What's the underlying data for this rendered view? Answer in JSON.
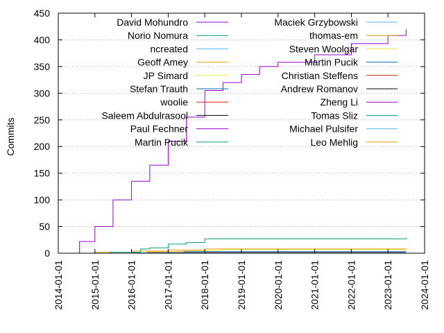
{
  "chart_data": {
    "type": "line",
    "ylabel": "Commits",
    "xlabel": "",
    "ylim": [
      0,
      450
    ],
    "xlim": [
      "2014-01-01",
      "2024-01-01"
    ],
    "y_ticks": [
      0,
      50,
      100,
      150,
      200,
      250,
      300,
      350,
      400,
      450
    ],
    "x_ticks": [
      "2014-01-01",
      "2015-01-01",
      "2016-01-01",
      "2017-01-01",
      "2018-01-01",
      "2019-01-01",
      "2020-01-01",
      "2021-01-01",
      "2022-01-01",
      "2023-01-01",
      "2024-01-01"
    ],
    "grid": "y-dotted",
    "legend": "inside-top, two columns",
    "series": [
      {
        "name": "David Mohundro",
        "color": "#9400d3",
        "x": [
          "2014-05-15",
          "2014-08-01",
          "2015-01-01",
          "2015-07-01",
          "2016-01-01",
          "2016-07-01",
          "2017-01-01",
          "2017-07-01",
          "2018-01-01",
          "2018-07-01",
          "2019-01-01",
          "2019-07-01",
          "2020-01-01",
          "2021-01-01",
          "2022-01-01",
          "2023-01-01",
          "2023-07-01"
        ],
        "values": [
          0,
          22,
          50,
          100,
          135,
          165,
          210,
          255,
          305,
          320,
          335,
          350,
          358,
          372,
          393,
          408,
          420
        ]
      },
      {
        "name": "Norio Nomura",
        "color": "#009e73",
        "x": [
          "2014-05-15",
          "2015-06-01",
          "2016-04-01",
          "2016-07-01",
          "2017-01-01",
          "2017-07-01",
          "2018-01-01",
          "2023-07-01"
        ],
        "values": [
          0,
          2,
          8,
          10,
          17,
          20,
          27,
          29
        ]
      },
      {
        "name": "ncreated",
        "color": "#56b4e9",
        "x": [
          "2014-05-15",
          "2016-01-01",
          "2023-07-01"
        ],
        "values": [
          0,
          1,
          1
        ]
      },
      {
        "name": "Geoff Amey",
        "color": "#e69f00",
        "x": [
          "2014-05-15",
          "2015-01-01",
          "2016-01-01",
          "2017-01-01",
          "2018-01-01",
          "2023-07-01"
        ],
        "values": [
          0,
          2,
          4,
          6,
          8,
          9
        ]
      },
      {
        "name": "JP Simard",
        "color": "#f0e442",
        "x": [
          "2014-05-15",
          "2016-06-01",
          "2017-06-01",
          "2018-06-01",
          "2023-07-01"
        ],
        "values": [
          0,
          3,
          5,
          7,
          7
        ]
      },
      {
        "name": "Stefan Trauth",
        "color": "#0072b2",
        "x": [
          "2014-05-15",
          "2017-01-01",
          "2023-07-01"
        ],
        "values": [
          0,
          3,
          3
        ]
      },
      {
        "name": "woolie",
        "color": "#e51e10",
        "x": [
          "2014-05-15",
          "2016-06-01",
          "2023-07-01"
        ],
        "values": [
          0,
          2,
          2
        ]
      },
      {
        "name": "Saleem Abdulrasool",
        "color": "#000000",
        "x": [
          "2014-05-15",
          "2019-01-01",
          "2023-07-01"
        ],
        "values": [
          0,
          2,
          2
        ]
      },
      {
        "name": "Paul Fechner",
        "color": "#9400d3",
        "x": [
          "2014-05-15",
          "2017-03-01",
          "2023-07-01"
        ],
        "values": [
          0,
          1,
          1
        ]
      },
      {
        "name": "Martin Pucik",
        "color": "#009e73",
        "x": [
          "2014-05-15",
          "2018-01-01",
          "2023-07-01"
        ],
        "values": [
          0,
          1,
          1
        ]
      },
      {
        "name": "Maciek Grzybowski",
        "color": "#56b4e9",
        "x": [
          "2014-05-15",
          "2017-06-01",
          "2023-07-01"
        ],
        "values": [
          0,
          1,
          1
        ]
      },
      {
        "name": "thomas-em",
        "color": "#e69f00",
        "x": [
          "2014-05-15",
          "2019-06-01",
          "2023-07-01"
        ],
        "values": [
          0,
          1,
          1
        ]
      },
      {
        "name": "Steven Woolgar",
        "color": "#f0e442",
        "x": [
          "2014-05-15",
          "2018-06-01",
          "2023-07-01"
        ],
        "values": [
          0,
          1,
          1
        ]
      },
      {
        "name": "Martin Pucik",
        "color": "#0072b2",
        "x": [
          "2014-05-15",
          "2018-03-01",
          "2023-07-01"
        ],
        "values": [
          0,
          1,
          1
        ]
      },
      {
        "name": "Christian Steffens",
        "color": "#e51e10",
        "x": [
          "2014-05-15",
          "2020-01-01",
          "2023-07-01"
        ],
        "values": [
          0,
          1,
          1
        ]
      },
      {
        "name": "Andrew Romanov",
        "color": "#000000",
        "x": [
          "2014-05-15",
          "2020-06-01",
          "2023-07-01"
        ],
        "values": [
          0,
          1,
          1
        ]
      },
      {
        "name": "Zheng Li",
        "color": "#9400d3",
        "x": [
          "2014-05-15",
          "2021-01-01",
          "2023-07-01"
        ],
        "values": [
          0,
          1,
          1
        ]
      },
      {
        "name": "Tomas Sliz",
        "color": "#009e73",
        "x": [
          "2014-05-15",
          "2021-06-01",
          "2023-07-01"
        ],
        "values": [
          0,
          1,
          1
        ]
      },
      {
        "name": "Michael Pulsifer",
        "color": "#56b4e9",
        "x": [
          "2014-05-15",
          "2022-01-01",
          "2023-07-01"
        ],
        "values": [
          0,
          1,
          1
        ]
      },
      {
        "name": "Leo Mehlig",
        "color": "#e69f00",
        "x": [
          "2014-05-15",
          "2022-06-01",
          "2023-07-01"
        ],
        "values": [
          0,
          1,
          1
        ]
      }
    ]
  }
}
